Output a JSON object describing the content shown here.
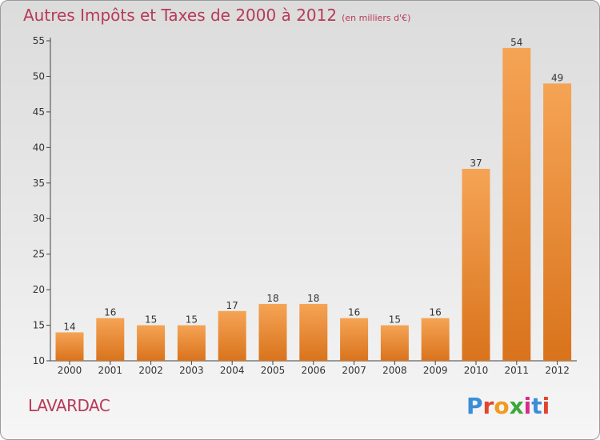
{
  "header": {
    "title": "Autres Impôts et Taxes de 2000 à 2012",
    "subtitle": "(en milliers d'€)"
  },
  "footer": {
    "town": "LAVARDAC",
    "brand": "Proxiti"
  },
  "colors": {
    "title": "#b73a58",
    "bar_top": "#f5a455",
    "bar_bottom": "#d9731c",
    "brand_letters": [
      "#3a8ed8",
      "#e2452e",
      "#f29a1f",
      "#3aa83a",
      "#d82c8a",
      "#3a8ed8",
      "#e2452e"
    ]
  },
  "chart_data": {
    "type": "bar",
    "title": "Autres Impôts et Taxes de 2000 à 2012",
    "subtitle": "(en milliers d'€)",
    "categories": [
      "2000",
      "2001",
      "2002",
      "2003",
      "2004",
      "2005",
      "2006",
      "2007",
      "2008",
      "2009",
      "2010",
      "2011",
      "2012"
    ],
    "values": [
      14,
      16,
      15,
      15,
      17,
      18,
      18,
      16,
      15,
      16,
      37,
      54,
      49
    ],
    "data_labels": [
      "14",
      "16",
      "15",
      "15",
      "17",
      "18",
      "18",
      "16",
      "15",
      "16",
      "37",
      "54",
      "49"
    ],
    "ylim": [
      10,
      55
    ],
    "yticks": [
      10,
      15,
      20,
      25,
      30,
      35,
      40,
      45,
      50,
      55
    ],
    "ytick_labels": [
      "10",
      "15",
      "20",
      "25",
      "30",
      "35",
      "40",
      "45",
      "50",
      "55"
    ],
    "xlabel": "",
    "ylabel": "",
    "grid": false
  }
}
